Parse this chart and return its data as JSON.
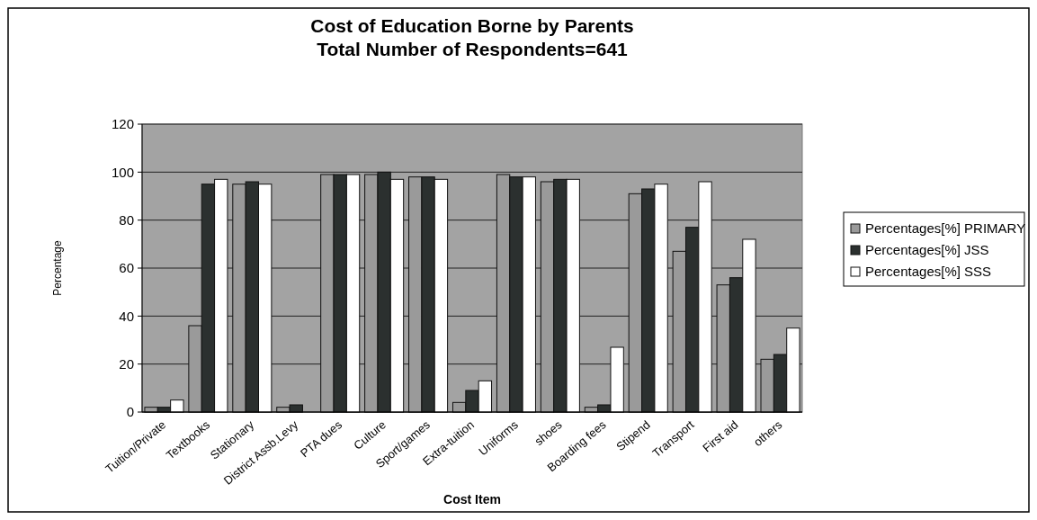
{
  "chart_data": {
    "type": "bar",
    "title": "Cost of Education Borne by Parents\nTotal Number of Respondents=641",
    "xlabel": "Cost Item",
    "ylabel": "Percentage",
    "categories": [
      "Tuition/Private",
      "Textbooks",
      "Stationary",
      "District Assb.Levy",
      "PTA dues",
      "Culture",
      "Sport/games",
      "Extra-tuition",
      "Uniforms",
      "shoes",
      "Boarding fees",
      "Stipend",
      "Transport",
      "First aid",
      "others"
    ],
    "series": [
      {
        "name": "Percentages[%] PRIMARY",
        "color": "#9a9a9a",
        "values": [
          2,
          36,
          95,
          2,
          99,
          99,
          98,
          4,
          99,
          96,
          2,
          91,
          67,
          53,
          22
        ]
      },
      {
        "name": "Percentages[%] JSS",
        "color": "#2b302f",
        "values": [
          2,
          95,
          96,
          3,
          99,
          100,
          98,
          9,
          98,
          97,
          3,
          93,
          77,
          56,
          24
        ]
      },
      {
        "name": "Percentages[%] SSS",
        "color": "#ffffff",
        "values": [
          5,
          97,
          95,
          0,
          99,
          97,
          97,
          13,
          98,
          97,
          27,
          95,
          96,
          72,
          35
        ]
      }
    ],
    "ylim": [
      0,
      120
    ],
    "yticks": [
      0,
      20,
      40,
      60,
      80,
      100,
      120
    ],
    "grid": "y",
    "legend": "right"
  }
}
